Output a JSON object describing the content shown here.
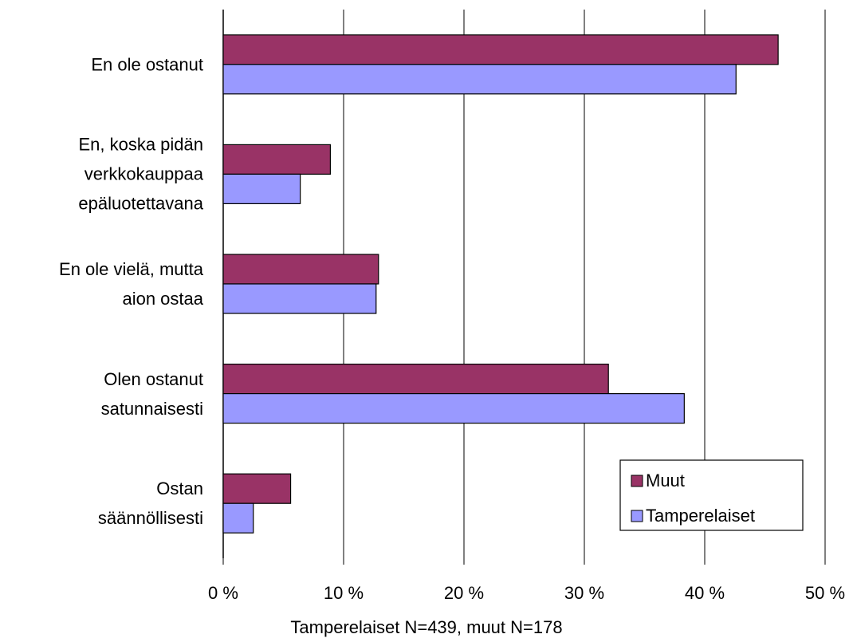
{
  "chart_data": {
    "type": "hbar",
    "categories": [
      "En ole ostanut",
      "En, koska pidän\nverkkokauppaa\nepäluotettavana",
      "En ole vielä, mutta\naion ostaa",
      "Olen ostanut\nsatunnaisesti",
      "Ostan\nsäännöllisesti"
    ],
    "series": [
      {
        "name": "Muut",
        "color": "#993366",
        "values": [
          46.1,
          8.9,
          12.9,
          32.0,
          5.6
        ]
      },
      {
        "name": "Tamperelaiset",
        "color": "#9999ff",
        "values": [
          42.6,
          6.4,
          12.7,
          38.3,
          2.5
        ]
      }
    ],
    "xlim": [
      0,
      50
    ],
    "xticks": [
      {
        "value": 0,
        "label": "0 %"
      },
      {
        "value": 10,
        "label": "10 %"
      },
      {
        "value": 20,
        "label": "20 %"
      },
      {
        "value": 30,
        "label": "30 %"
      },
      {
        "value": 40,
        "label": "40 %"
      },
      {
        "value": 50,
        "label": "50 %"
      }
    ],
    "grid": true,
    "legend": "lower right",
    "x_label": "Tamperelaiset N=439, muut N=178"
  }
}
